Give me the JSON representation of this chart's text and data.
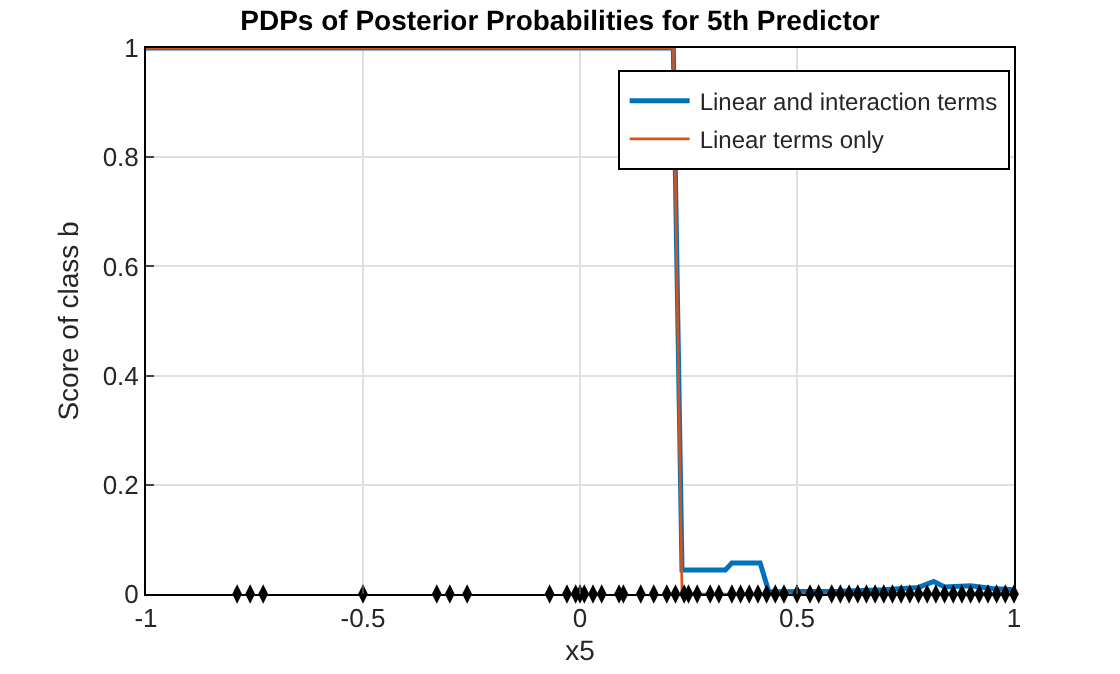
{
  "chart_data": {
    "type": "line",
    "title": "PDPs of Posterior Probabilities for 5th Predictor",
    "xlabel": "x5",
    "ylabel": "Score of class b",
    "xlim": [
      -1,
      1
    ],
    "xticks": [
      -1,
      -0.5,
      0,
      0.5,
      1
    ],
    "ylim": [
      0,
      1
    ],
    "yticks": [
      0,
      0.2,
      0.4,
      0.6,
      0.8,
      1
    ],
    "grid": true,
    "legend": "top right",
    "series": [
      {
        "name": "Linear and interaction terms",
        "color": "#0072bd",
        "x": [
          -1,
          0.215,
          0.235,
          0.335,
          0.35,
          0.415,
          0.435,
          0.6,
          0.7,
          0.78,
          0.815,
          0.84,
          0.9,
          0.95,
          1
        ],
        "values": [
          1,
          1,
          0.044,
          0.044,
          0.057,
          0.057,
          0.004,
          0.005,
          0.008,
          0.012,
          0.023,
          0.013,
          0.015,
          0.01,
          0.008
        ]
      },
      {
        "name": "Linear terms only",
        "color": "#d95319",
        "x": [
          -1,
          0.215,
          0.235,
          1
        ],
        "values": [
          1,
          1,
          0,
          0
        ]
      },
      {
        "type": "scatter",
        "color": "#000000",
        "x": [
          -0.79,
          -0.76,
          -0.73,
          -0.5,
          -0.33,
          -0.3,
          -0.26,
          -0.07,
          -0.03,
          -0.01,
          0,
          0.01,
          0.03,
          0.05,
          0.09,
          0.1,
          0.14,
          0.17,
          0.2,
          0.22,
          0.24,
          0.25,
          0.27,
          0.3,
          0.32,
          0.35,
          0.37,
          0.39,
          0.41,
          0.43,
          0.45,
          0.47,
          0.5,
          0.53,
          0.55,
          0.58,
          0.6,
          0.62,
          0.64,
          0.66,
          0.68,
          0.7,
          0.72,
          0.74,
          0.76,
          0.78,
          0.8,
          0.82,
          0.84,
          0.86,
          0.88,
          0.9,
          0.92,
          0.94,
          0.96,
          0.98,
          1
        ],
        "values": [
          0,
          0,
          0,
          0,
          0,
          0,
          0,
          0,
          0,
          0,
          0,
          0,
          0,
          0,
          0,
          0,
          0,
          0,
          0,
          0,
          0,
          0,
          0,
          0,
          0,
          0,
          0,
          0,
          0,
          0,
          0,
          0,
          0,
          0,
          0,
          0,
          0,
          0,
          0,
          0,
          0,
          0,
          0,
          0,
          0,
          0,
          0,
          0,
          0,
          0,
          0,
          0,
          0,
          0,
          0,
          0,
          0
        ]
      }
    ]
  }
}
